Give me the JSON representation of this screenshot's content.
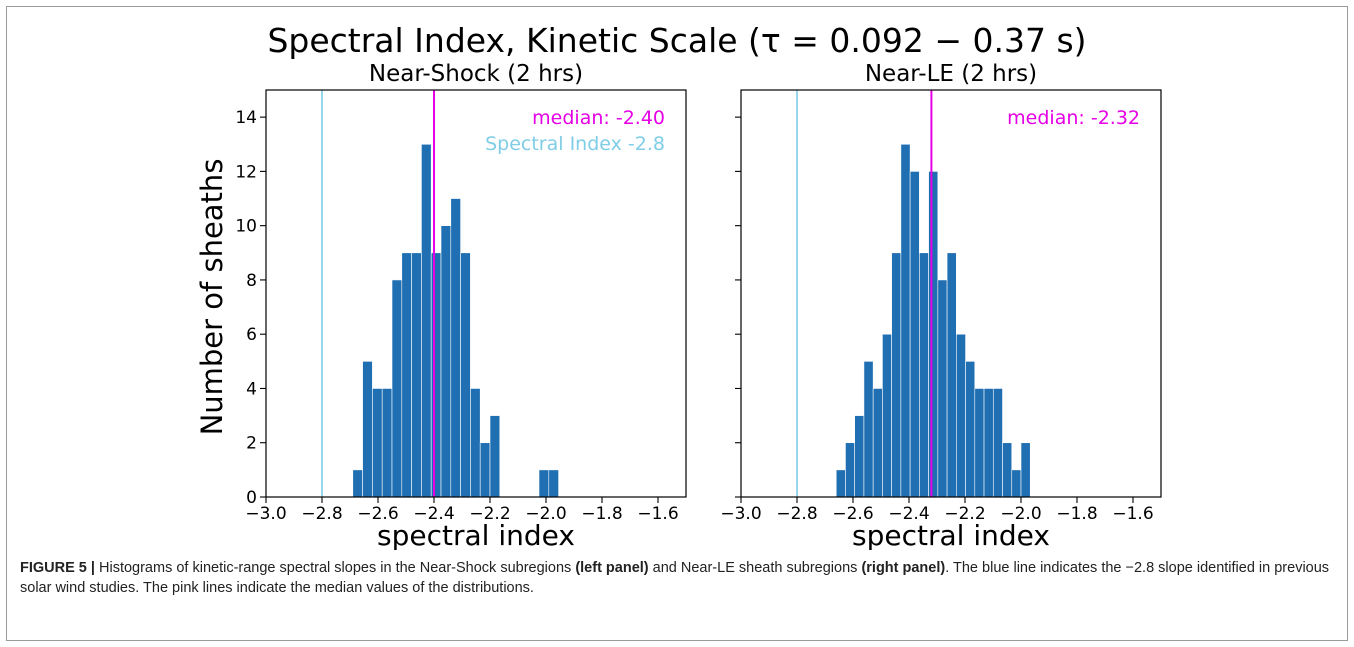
{
  "figure": {
    "suptitle": "Spectral Index, Kinetic Scale (τ = 0.092 − 0.37 s)",
    "ylabel": "Number of sheaths",
    "colors": {
      "bars": "#1f6fb2",
      "reference_line": "#7fcde6",
      "median_line": "#e600e6"
    }
  },
  "chart_data": [
    {
      "type": "bar",
      "title": "Near-Shock (2 hrs)",
      "xlabel": "spectral index",
      "ylabel": "Number of sheaths",
      "xlim": [
        -3.0,
        -1.5
      ],
      "ylim": [
        0,
        15
      ],
      "xticks": [
        -3.0,
        -2.8,
        -2.6,
        -2.4,
        -2.2,
        -2.0,
        -1.8,
        -1.6
      ],
      "yticks": [
        0,
        2,
        4,
        6,
        8,
        10,
        12,
        14
      ],
      "xtick_labels": [
        "−3.0",
        "−2.8",
        "−2.6",
        "−2.4",
        "−2.2",
        "−2.0",
        "−1.8",
        "−1.6"
      ],
      "ytick_labels": [
        "0",
        "2",
        "4",
        "6",
        "8",
        "10",
        "12",
        "14"
      ],
      "bins": [
        {
          "x0": -2.69,
          "x1": -2.655,
          "count": 1
        },
        {
          "x0": -2.655,
          "x1": -2.62,
          "count": 5
        },
        {
          "x0": -2.62,
          "x1": -2.585,
          "count": 4
        },
        {
          "x0": -2.585,
          "x1": -2.55,
          "count": 4
        },
        {
          "x0": -2.55,
          "x1": -2.515,
          "count": 8
        },
        {
          "x0": -2.515,
          "x1": -2.48,
          "count": 9
        },
        {
          "x0": -2.48,
          "x1": -2.445,
          "count": 9
        },
        {
          "x0": -2.445,
          "x1": -2.41,
          "count": 13
        },
        {
          "x0": -2.41,
          "x1": -2.375,
          "count": 9
        },
        {
          "x0": -2.375,
          "x1": -2.34,
          "count": 10
        },
        {
          "x0": -2.34,
          "x1": -2.305,
          "count": 11
        },
        {
          "x0": -2.305,
          "x1": -2.27,
          "count": 9
        },
        {
          "x0": -2.27,
          "x1": -2.235,
          "count": 4
        },
        {
          "x0": -2.235,
          "x1": -2.2,
          "count": 2
        },
        {
          "x0": -2.2,
          "x1": -2.165,
          "count": 3
        },
        {
          "x0": -2.165,
          "x1": -2.13,
          "count": 0
        },
        {
          "x0": -2.13,
          "x1": -2.095,
          "count": 0
        },
        {
          "x0": -2.095,
          "x1": -2.06,
          "count": 0
        },
        {
          "x0": -2.06,
          "x1": -2.025,
          "count": 0
        },
        {
          "x0": -2.025,
          "x1": -1.99,
          "count": 1
        },
        {
          "x0": -1.99,
          "x1": -1.955,
          "count": 1
        }
      ],
      "reference_line": {
        "x": -2.8,
        "label": "Spectral Index -2.8"
      },
      "median_line": {
        "x": -2.4,
        "label": "median: -2.40"
      }
    },
    {
      "type": "bar",
      "title": "Near-LE (2 hrs)",
      "xlabel": "spectral index",
      "ylabel": "",
      "xlim": [
        -3.0,
        -1.5
      ],
      "ylim": [
        0,
        15
      ],
      "xticks": [
        -3.0,
        -2.8,
        -2.6,
        -2.4,
        -2.2,
        -2.0,
        -1.8,
        -1.6
      ],
      "yticks": [
        0,
        2,
        4,
        6,
        8,
        10,
        12,
        14
      ],
      "xtick_labels": [
        "−3.0",
        "−2.8",
        "−2.6",
        "−2.4",
        "−2.2",
        "−2.0",
        "−1.8",
        "−1.6"
      ],
      "ytick_labels": [],
      "bins": [
        {
          "x0": -2.66,
          "x1": -2.627,
          "count": 1
        },
        {
          "x0": -2.627,
          "x1": -2.594,
          "count": 2
        },
        {
          "x0": -2.594,
          "x1": -2.561,
          "count": 3
        },
        {
          "x0": -2.561,
          "x1": -2.528,
          "count": 5
        },
        {
          "x0": -2.528,
          "x1": -2.495,
          "count": 4
        },
        {
          "x0": -2.495,
          "x1": -2.462,
          "count": 6
        },
        {
          "x0": -2.462,
          "x1": -2.429,
          "count": 9
        },
        {
          "x0": -2.429,
          "x1": -2.396,
          "count": 13
        },
        {
          "x0": -2.396,
          "x1": -2.363,
          "count": 12
        },
        {
          "x0": -2.363,
          "x1": -2.33,
          "count": 9
        },
        {
          "x0": -2.33,
          "x1": -2.297,
          "count": 12
        },
        {
          "x0": -2.297,
          "x1": -2.264,
          "count": 8
        },
        {
          "x0": -2.264,
          "x1": -2.231,
          "count": 9
        },
        {
          "x0": -2.231,
          "x1": -2.198,
          "count": 6
        },
        {
          "x0": -2.198,
          "x1": -2.165,
          "count": 5
        },
        {
          "x0": -2.165,
          "x1": -2.132,
          "count": 4
        },
        {
          "x0": -2.132,
          "x1": -2.099,
          "count": 4
        },
        {
          "x0": -2.099,
          "x1": -2.066,
          "count": 4
        },
        {
          "x0": -2.066,
          "x1": -2.033,
          "count": 2
        },
        {
          "x0": -2.033,
          "x1": -2.0,
          "count": 1
        },
        {
          "x0": -2.0,
          "x1": -1.967,
          "count": 2
        }
      ],
      "reference_line": {
        "x": -2.8,
        "label": ""
      },
      "median_line": {
        "x": -2.32,
        "label": "median: -2.32"
      }
    }
  ],
  "caption": {
    "label": "FIGURE 5 |",
    "text_1": " Histograms of kinetic-range spectral slopes in the Near-Shock subregions ",
    "bold_1": "(left panel)",
    "text_2": " and Near-LE sheath subregions ",
    "bold_2": "(right panel)",
    "text_3": ". The blue line indicates the −2.8 slope identified in previous solar wind studies. The pink lines indicate the median values of the distributions."
  }
}
